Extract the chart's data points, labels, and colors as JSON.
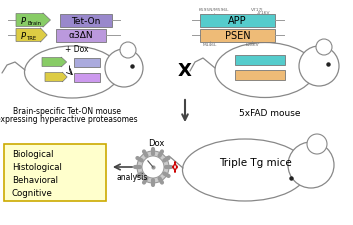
{
  "bg_color": "#ffffff",
  "left_panel": {
    "arrow1_color": "#88cc66",
    "arrow2_color": "#ddcc44",
    "box1_color": "#9988cc",
    "box2_color": "#bb99dd",
    "box1_text": "Tet-On",
    "box2_text": "α3ΔN",
    "p_brain_sub": "Brain",
    "p_tre_sub": "TRE"
  },
  "right_panel": {
    "box1_color": "#55cccc",
    "box2_color": "#eebb77",
    "box1_text": "APP",
    "box2_text": "PSEN"
  },
  "mouse_line_color": "#888888",
  "cross_text": "X",
  "label_left1": "Brain-specific Tet-ON mouse",
  "label_left2": "expressing hyperactive proteasomes",
  "label_right": "5xFAD mouse",
  "label_bottom": "Triple Tg mice",
  "dox_label_top": "+ Dox",
  "dox_label_bottom": "Dox",
  "analysis_label": "analysis",
  "bio_box_color": "#ffffcc",
  "bio_box_text": "Biological\nHistological\nBehavioral\nCognitive",
  "bio_box_border": "#ccaa00",
  "arrow_dark": "#444444",
  "red_color": "#cc0000",
  "gear_fill": "#cccccc",
  "gear_edge": "#999999",
  "app_annot": "K595N/M596L   V717I\n                    I716V",
  "psen_annot": "M146L      L286V"
}
